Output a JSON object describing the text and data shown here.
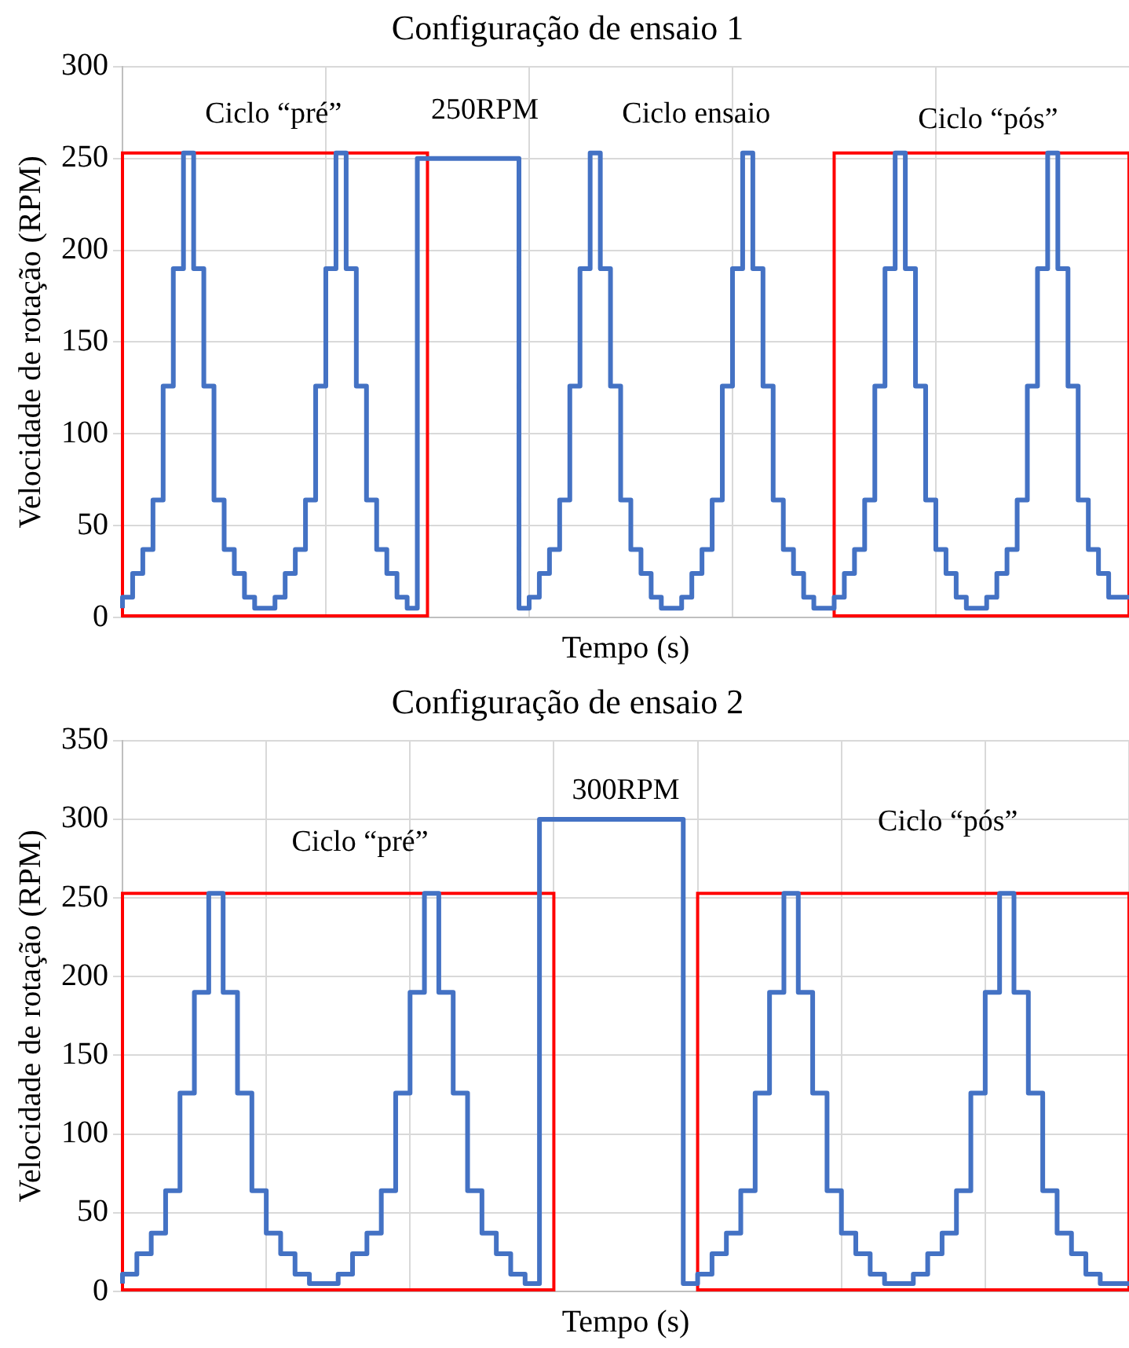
{
  "chart_data": [
    {
      "type": "step",
      "title": "Configuração de ensaio 1",
      "xlabel": "Tempo (s)",
      "ylabel": "Velocidade de rotação (RPM)",
      "categories": [
        null,
        null,
        null,
        null,
        null,
        null,
        null,
        null,
        null,
        null,
        null,
        null,
        null,
        null,
        null,
        null,
        null,
        null,
        null,
        null,
        null,
        null,
        null,
        null,
        null,
        null,
        null,
        null,
        null,
        null,
        null,
        null,
        null,
        null,
        null,
        null,
        null,
        null,
        null,
        null,
        null,
        null,
        null,
        null,
        null,
        null,
        null,
        null,
        null,
        null,
        null,
        null,
        null,
        null,
        null,
        null,
        null,
        null,
        null,
        null,
        null,
        null,
        null,
        null,
        null,
        null,
        null,
        null,
        null,
        null,
        null,
        null,
        null,
        null,
        null,
        null,
        null,
        null,
        null,
        null,
        null,
        null,
        null,
        null,
        null,
        null,
        null,
        null,
        null,
        null,
        null,
        null,
        null,
        null,
        null,
        null,
        null,
        null,
        null,
        null
      ],
      "ylim": [
        0,
        300
      ],
      "yticks": [
        0,
        50,
        100,
        150,
        200,
        250,
        300
      ],
      "grid": true,
      "tick_labels": "y",
      "marker": "none",
      "legend": false,
      "series": [
        {
          "type": "step",
          "color": "#4472c4",
          "values": [
            5,
            11,
            24,
            37,
            64,
            126,
            190,
            253,
            190,
            126,
            64,
            37,
            24,
            11,
            5,
            5,
            11,
            24,
            37,
            64,
            126,
            190,
            253,
            190,
            126,
            64,
            37,
            24,
            11,
            5,
            250,
            250,
            250,
            250,
            250,
            250,
            250,
            250,
            250,
            250,
            5,
            11,
            24,
            37,
            64,
            126,
            190,
            253,
            190,
            126,
            64,
            37,
            24,
            11,
            5,
            5,
            11,
            24,
            37,
            64,
            126,
            190,
            253,
            190,
            126,
            64,
            37,
            24,
            11,
            5,
            5,
            11,
            24,
            37,
            64,
            126,
            190,
            253,
            190,
            126,
            64,
            37,
            24,
            11,
            5,
            5,
            11,
            24,
            37,
            64,
            126,
            190,
            253,
            190,
            126,
            64,
            37,
            24,
            11,
            11
          ]
        }
      ],
      "annotations": [
        "Ciclo “pré”",
        "250RPM",
        "Ciclo ensaio",
        "Ciclo “pós”"
      ]
    },
    {
      "type": "step",
      "title": "Configuração de ensaio 2",
      "xlabel": "Tempo (s)",
      "ylabel": "Velocidade de rotação (RPM)",
      "categories": [
        null,
        null,
        null,
        null,
        null,
        null,
        null,
        null,
        null,
        null,
        null,
        null,
        null,
        null,
        null,
        null,
        null,
        null,
        null,
        null,
        null,
        null,
        null,
        null,
        null,
        null,
        null,
        null,
        null,
        null,
        null,
        null,
        null,
        null,
        null,
        null,
        null,
        null,
        null,
        null,
        null,
        null,
        null,
        null,
        null,
        null,
        null,
        null,
        null,
        null,
        null,
        null,
        null,
        null,
        null,
        null,
        null,
        null,
        null,
        null,
        null,
        null,
        null,
        null,
        null,
        null,
        null,
        null,
        null,
        null,
        null
      ],
      "ylim": [
        0,
        350
      ],
      "yticks": [
        0,
        50,
        100,
        150,
        200,
        250,
        300,
        350
      ],
      "grid": true,
      "tick_labels": "y",
      "marker": "none",
      "legend": false,
      "series": [
        {
          "type": "step",
          "color": "#4472c4",
          "values": [
            5,
            11,
            24,
            37,
            64,
            126,
            190,
            253,
            190,
            126,
            64,
            37,
            24,
            11,
            5,
            5,
            11,
            24,
            37,
            64,
            126,
            190,
            253,
            190,
            126,
            64,
            37,
            24,
            11,
            5,
            300,
            300,
            300,
            300,
            300,
            300,
            300,
            300,
            300,
            300,
            5,
            11,
            24,
            37,
            64,
            126,
            190,
            253,
            190,
            126,
            64,
            37,
            24,
            11,
            5,
            5,
            11,
            24,
            37,
            64,
            126,
            190,
            253,
            190,
            126,
            64,
            37,
            24,
            11,
            5,
            5
          ]
        }
      ],
      "annotations": [
        "Ciclo “pré”",
        "300RPM",
        "Ciclo “pós”"
      ]
    }
  ]
}
